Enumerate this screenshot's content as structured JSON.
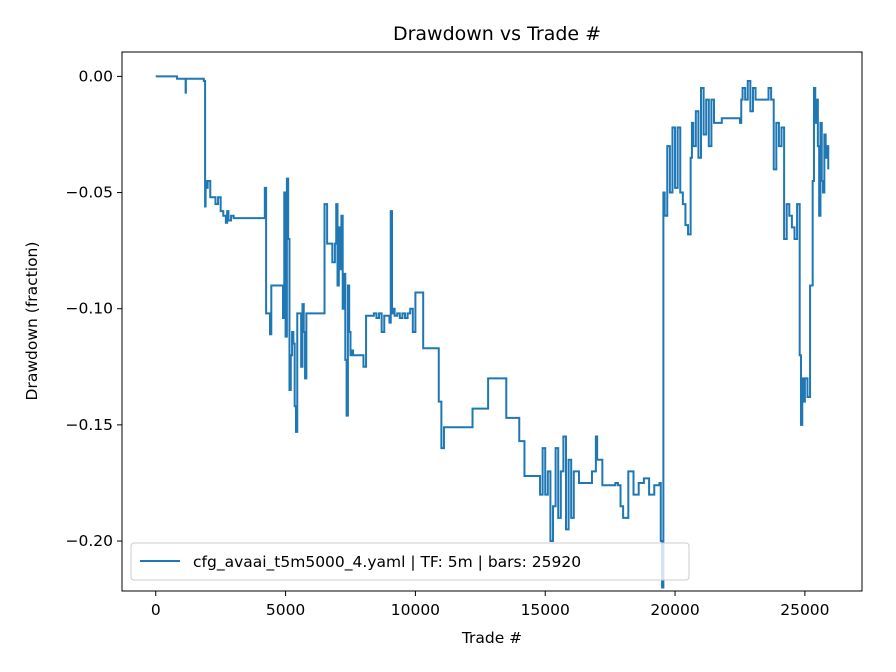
{
  "chart_data": {
    "type": "line",
    "title": "Drawdown vs Trade #",
    "xlabel": "Trade #",
    "ylabel": "Drawdown (fraction)",
    "xlim": [
      -1300,
      27200
    ],
    "ylim": [
      -0.2215,
      0.0105
    ],
    "xticks": [
      0,
      5000,
      10000,
      15000,
      20000,
      25000
    ],
    "xtick_labels": [
      "0",
      "5000",
      "10000",
      "15000",
      "20000",
      "25000"
    ],
    "yticks": [
      0.0,
      -0.05,
      -0.1,
      -0.15,
      -0.2
    ],
    "ytick_labels": [
      "0.00",
      "−0.05",
      "−0.10",
      "−0.15",
      "−0.20"
    ],
    "grid": false,
    "legend_position": "lower-left",
    "colors": {
      "series": "#1f77b4"
    },
    "series": [
      {
        "name": "cfg_avaai_t5m5000_4.yaml | TF: 5m | bars: 25920",
        "x": [
          0,
          800,
          820,
          1100,
          1150,
          1160,
          1800,
          1850,
          1900,
          1920,
          1950,
          2000,
          2100,
          2200,
          2300,
          2400,
          2500,
          2600,
          2700,
          2750,
          2800,
          2900,
          3000,
          3200,
          3800,
          4200,
          4250,
          4300,
          4400,
          4450,
          4500,
          4550,
          4900,
          4950,
          5000,
          5050,
          5100,
          5150,
          5200,
          5250,
          5300,
          5350,
          5400,
          5450,
          5600,
          5650,
          5700,
          5750,
          5800,
          5900,
          6000,
          6100,
          6200,
          6300,
          6500,
          6600,
          6700,
          6800,
          6900,
          6950,
          7000,
          7050,
          7100,
          7150,
          7200,
          7250,
          7300,
          7350,
          7400,
          7450,
          7500,
          7550,
          7600,
          7700,
          7800,
          7900,
          8000,
          8100,
          8200,
          8300,
          8400,
          8500,
          8600,
          8700,
          8800,
          8900,
          9000,
          9050,
          9100,
          9150,
          9200,
          9300,
          9400,
          9500,
          9600,
          9700,
          9800,
          9900,
          10000,
          10100,
          10200,
          10300,
          10500,
          10600,
          10800,
          10900,
          11000,
          11100,
          11500,
          11800,
          12200,
          12500,
          12800,
          13100,
          13200,
          13500,
          13900,
          14000,
          14200,
          14400,
          14500,
          14800,
          14900,
          15000,
          15100,
          15200,
          15300,
          15400,
          15500,
          15600,
          15700,
          15800,
          15900,
          16000,
          16100,
          16300,
          16500,
          16800,
          16950,
          17000,
          17200,
          17500,
          17700,
          17800,
          17850,
          17900,
          18000,
          18200,
          18400,
          18600,
          18800,
          19000,
          19200,
          19400,
          19450,
          19500,
          19550,
          19600,
          19700,
          19800,
          19900,
          20000,
          20100,
          20200,
          20300,
          20400,
          20500,
          20600,
          20650,
          20700,
          20800,
          20900,
          21000,
          21100,
          21200,
          21300,
          21400,
          21500,
          21600,
          21700,
          21800,
          21900,
          22000,
          22200,
          22500,
          22550,
          22600,
          22700,
          22800,
          22900,
          23000,
          23100,
          23200,
          23300,
          23400,
          23500,
          23600,
          23700,
          23800,
          23900,
          24000,
          24100,
          24200,
          24300,
          24400,
          24500,
          24600,
          24700,
          24800,
          24850,
          24900,
          24950,
          25000,
          25100,
          25200,
          25300,
          25350,
          25400,
          25450,
          25500,
          25550,
          25600,
          25650,
          25700,
          25750,
          25800,
          25850,
          25900
        ],
        "y": [
          0.0,
          0.0,
          -0.001,
          -0.001,
          -0.007,
          -0.001,
          -0.001,
          -0.002,
          -0.056,
          -0.045,
          -0.048,
          -0.045,
          -0.052,
          -0.052,
          -0.055,
          -0.052,
          -0.058,
          -0.06,
          -0.063,
          -0.058,
          -0.062,
          -0.06,
          -0.061,
          -0.061,
          -0.061,
          -0.048,
          -0.102,
          -0.102,
          -0.111,
          -0.09,
          -0.09,
          -0.09,
          -0.104,
          -0.05,
          -0.112,
          -0.044,
          -0.07,
          -0.135,
          -0.12,
          -0.11,
          -0.115,
          -0.142,
          -0.153,
          -0.102,
          -0.125,
          -0.098,
          -0.11,
          -0.13,
          -0.102,
          -0.102,
          -0.102,
          -0.102,
          -0.102,
          -0.102,
          -0.055,
          -0.072,
          -0.072,
          -0.08,
          -0.072,
          -0.055,
          -0.09,
          -0.065,
          -0.083,
          -0.06,
          -0.1,
          -0.085,
          -0.122,
          -0.146,
          -0.09,
          -0.11,
          -0.12,
          -0.118,
          -0.12,
          -0.12,
          -0.12,
          -0.12,
          -0.125,
          -0.103,
          -0.103,
          -0.103,
          -0.102,
          -0.104,
          -0.102,
          -0.11,
          -0.103,
          -0.103,
          -0.106,
          -0.058,
          -0.102,
          -0.1,
          -0.103,
          -0.102,
          -0.104,
          -0.102,
          -0.104,
          -0.102,
          -0.1,
          -0.11,
          -0.093,
          -0.093,
          -0.093,
          -0.117,
          -0.117,
          -0.117,
          -0.117,
          -0.14,
          -0.16,
          -0.151,
          -0.151,
          -0.151,
          -0.143,
          -0.143,
          -0.13,
          -0.13,
          -0.13,
          -0.147,
          -0.147,
          -0.157,
          -0.172,
          -0.172,
          -0.172,
          -0.18,
          -0.16,
          -0.18,
          -0.17,
          -0.2,
          -0.185,
          -0.16,
          -0.19,
          -0.17,
          -0.155,
          -0.195,
          -0.165,
          -0.19,
          -0.17,
          -0.175,
          -0.175,
          -0.17,
          -0.155,
          -0.165,
          -0.176,
          -0.176,
          -0.175,
          -0.176,
          -0.176,
          -0.185,
          -0.19,
          -0.17,
          -0.18,
          -0.175,
          -0.173,
          -0.18,
          -0.176,
          -0.175,
          -0.2,
          -0.22,
          -0.05,
          -0.06,
          -0.03,
          -0.05,
          -0.022,
          -0.048,
          -0.022,
          -0.05,
          -0.055,
          -0.064,
          -0.068,
          -0.035,
          -0.02,
          -0.03,
          -0.015,
          -0.035,
          -0.005,
          -0.025,
          -0.01,
          -0.03,
          -0.01,
          -0.02,
          -0.02,
          -0.02,
          -0.018,
          -0.018,
          -0.018,
          -0.018,
          -0.02,
          -0.01,
          -0.005,
          -0.01,
          -0.002,
          -0.015,
          -0.005,
          -0.01,
          -0.01,
          -0.01,
          -0.01,
          -0.01,
          -0.005,
          -0.01,
          -0.04,
          -0.02,
          -0.03,
          -0.022,
          -0.07,
          -0.055,
          -0.06,
          -0.065,
          -0.07,
          -0.055,
          -0.12,
          -0.15,
          -0.13,
          -0.14,
          -0.13,
          -0.138,
          -0.09,
          -0.045,
          -0.005,
          -0.02,
          -0.01,
          -0.03,
          -0.06,
          -0.02,
          -0.045,
          -0.05,
          -0.025,
          -0.035,
          -0.03,
          -0.04
        ]
      }
    ]
  }
}
